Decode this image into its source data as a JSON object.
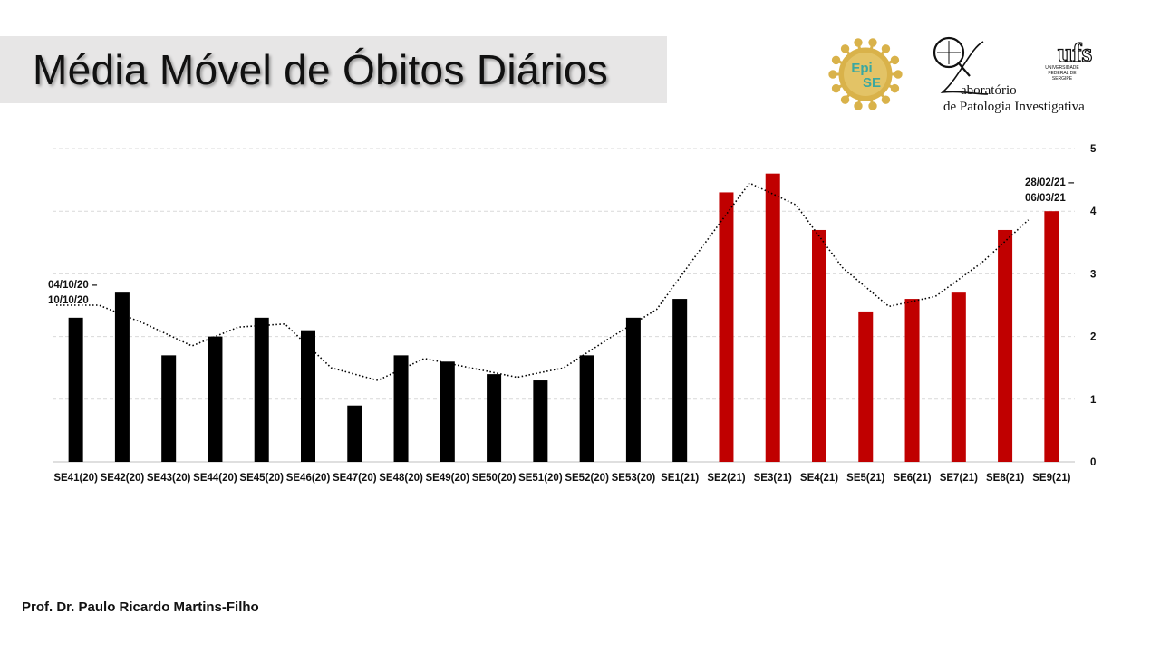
{
  "slide": {
    "title": "Média Móvel de Óbitos Diários",
    "author": "Prof. Dr. Paulo Ricardo Martins-Filho"
  },
  "logos": {
    "episE": {
      "line1": "Epi",
      "line2": "SE"
    },
    "lab": {
      "line1": "aboratório",
      "line2": "de Patologia Investigativa"
    },
    "ufs": {
      "text": "ufs",
      "caption1": "UNIVERSIDADE",
      "caption2": "FEDERAL DE",
      "caption3": "SERGIPE"
    }
  },
  "colors": {
    "bar_2020": "#000000",
    "bar_2021": "#c00000",
    "trend": "#000000",
    "grid": "#d9d9d9"
  },
  "chart_data": {
    "type": "bar",
    "title": "Média Móvel de Óbitos Diários",
    "xlabel": "",
    "ylabel": "",
    "categories": [
      "SE41(20)",
      "SE42(20)",
      "SE43(20)",
      "SE44(20)",
      "SE45(20)",
      "SE46(20)",
      "SE47(20)",
      "SE48(20)",
      "SE49(20)",
      "SE50(20)",
      "SE51(20)",
      "SE52(20)",
      "SE53(20)",
      "SE1(21)",
      "SE2(21)",
      "SE3(21)",
      "SE4(21)",
      "SE5(21)",
      "SE6(21)",
      "SE7(21)",
      "SE8(21)",
      "SE9(21)"
    ],
    "values": [
      2.3,
      2.7,
      1.7,
      2.0,
      2.3,
      2.1,
      0.9,
      1.7,
      1.6,
      1.4,
      1.3,
      1.7,
      2.3,
      2.6,
      4.3,
      4.6,
      3.7,
      2.4,
      2.6,
      2.7,
      3.7,
      4.0
    ],
    "trend": [
      2.5,
      2.2,
      1.85,
      2.15,
      2.2,
      1.5,
      1.3,
      1.65,
      1.5,
      1.35,
      1.5,
      1.98,
      2.43,
      3.45,
      4.45,
      4.1,
      3.1,
      2.48,
      2.64,
      3.18,
      3.86
    ],
    "highlight_from_index": 14,
    "ylim": [
      0,
      5
    ],
    "yticks": [
      0,
      1,
      2,
      3,
      4,
      5
    ],
    "y_axis_side": "right",
    "grid": true,
    "legend": "none",
    "annotations": [
      {
        "index": 0,
        "line1": "04/10/20 –",
        "line2": "10/10/20"
      },
      {
        "index": 21,
        "line1": "28/02/21 –",
        "line2": "06/03/21"
      }
    ]
  }
}
